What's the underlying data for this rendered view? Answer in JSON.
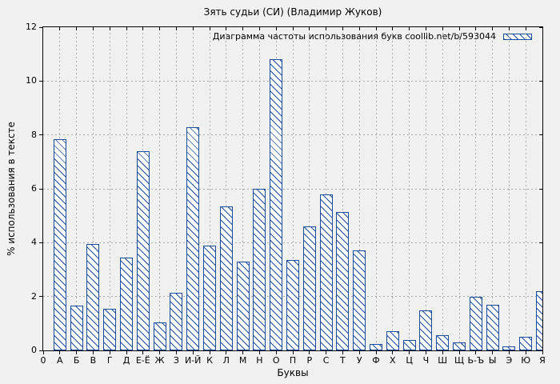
{
  "title": "Зять судьи (СИ) (Владимир Жуков)",
  "legend": {
    "label": "Диаграмма частоты использования букв coollib.net/b/593044",
    "swatch": "blue-diagonal-hatch"
  },
  "axes": {
    "x_label": "Буквы",
    "y_label": "% использования в тексте",
    "origin_label": "0",
    "y_ticks": [
      0,
      2,
      4,
      6,
      8,
      10,
      12
    ]
  },
  "colors": {
    "bar": "#1a4c9e",
    "background": "#f1f1f1",
    "grid": "#ababab",
    "frame": "#000000",
    "text": "#000000"
  },
  "chart_data": {
    "type": "bar",
    "title": "Зять судьи (СИ) (Владимир Жуков)",
    "xlabel": "Буквы",
    "ylabel": "% использования в тексте",
    "ylim": [
      0,
      12
    ],
    "grid": true,
    "legend_position": "top-right",
    "legend_entry": "Диаграмма частоты использования букв coollib.net/b/593044",
    "bar_style": "white fill, blue backslash hatch, blue outline",
    "categories": [
      "А",
      "Б",
      "В",
      "Г",
      "Д",
      "Е-Ё",
      "Ж",
      "З",
      "И-Й",
      "К",
      "Л",
      "М",
      "Н",
      "О",
      "П",
      "Р",
      "С",
      "Т",
      "У",
      "Ф",
      "Х",
      "Ц",
      "Ч",
      "Ш",
      "Щ",
      "Ь-Ъ",
      "Ы",
      "Э",
      "Ю",
      "Я"
    ],
    "values": [
      7.85,
      1.65,
      3.95,
      1.55,
      3.45,
      7.4,
      1.05,
      2.15,
      8.3,
      3.9,
      5.35,
      3.3,
      6.0,
      10.8,
      3.35,
      4.6,
      5.8,
      5.15,
      3.7,
      0.25,
      0.7,
      0.4,
      1.5,
      0.55,
      0.3,
      2.0,
      1.7,
      0.15,
      0.5,
      2.2
    ]
  }
}
